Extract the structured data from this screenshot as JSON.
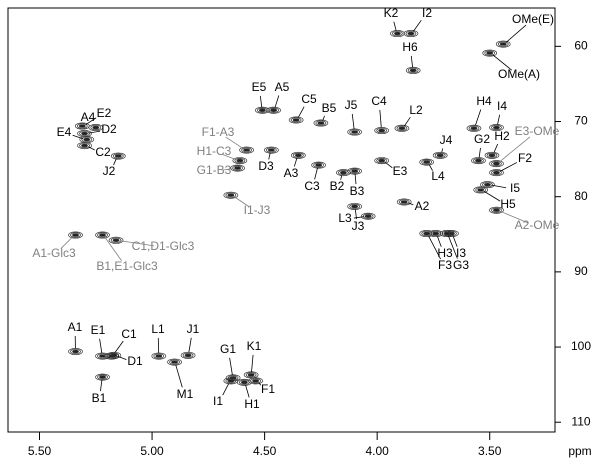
{
  "chart_data": {
    "type": "contour",
    "xlabel": "ppm",
    "xlim": [
      5.64,
      3.21
    ],
    "ylim": [
      111.3,
      54.9
    ],
    "xticks": [
      {
        "value": 5.5,
        "label": "5.50"
      },
      {
        "value": 5.0,
        "label": "5.00"
      },
      {
        "value": 4.5,
        "label": "4.50"
      },
      {
        "value": 4.0,
        "label": "4.00"
      },
      {
        "value": 3.5,
        "label": "3.50"
      }
    ],
    "yticks": [
      60,
      70,
      80,
      90,
      100,
      110
    ],
    "annotations": [
      {
        "text": "K2",
        "x": 3.91,
        "y": 58.3,
        "color": "#000000"
      },
      {
        "text": "I2",
        "x": 3.85,
        "y": 58.3,
        "color": "#000000"
      },
      {
        "text": "OMe(E)",
        "x": 3.44,
        "y": 59.7,
        "color": "#000000"
      },
      {
        "text": "H6",
        "x": 3.84,
        "y": 63.2,
        "color": "#000000"
      },
      {
        "text": "OMe(A)",
        "x": 3.5,
        "y": 60.9,
        "color": "#000000"
      },
      {
        "text": "E5",
        "x": 4.51,
        "y": 68.5,
        "color": "#000000"
      },
      {
        "text": "A5",
        "x": 4.46,
        "y": 68.5,
        "color": "#000000"
      },
      {
        "text": "C5",
        "x": 4.36,
        "y": 69.8,
        "color": "#000000"
      },
      {
        "text": "B5",
        "x": 4.25,
        "y": 70.2,
        "color": "#000000"
      },
      {
        "text": "J5",
        "x": 4.1,
        "y": 71.4,
        "color": "#000000"
      },
      {
        "text": "C4",
        "x": 3.98,
        "y": 71.2,
        "color": "#000000"
      },
      {
        "text": "L2",
        "x": 3.89,
        "y": 70.9,
        "color": "#000000"
      },
      {
        "text": "H4",
        "x": 3.57,
        "y": 70.9,
        "color": "#000000"
      },
      {
        "text": "I4",
        "x": 3.47,
        "y": 70.8,
        "color": "#000000"
      },
      {
        "text": "E4",
        "x": 5.29,
        "y": 72.4,
        "color": "#000000"
      },
      {
        "text": "A4",
        "x": 5.25,
        "y": 70.8,
        "color": "#000000"
      },
      {
        "text": "E2",
        "x": 5.31,
        "y": 70.6,
        "color": "#000000"
      },
      {
        "text": "D2",
        "x": 5.3,
        "y": 71.6,
        "color": "#000000"
      },
      {
        "text": "C2",
        "x": 5.3,
        "y": 73.2,
        "color": "#000000"
      },
      {
        "text": "J2",
        "x": 5.15,
        "y": 74.6,
        "color": "#000000"
      },
      {
        "text": "F1-A3",
        "x": 4.58,
        "y": 73.8,
        "color": "#808080"
      },
      {
        "text": "H1-C3",
        "x": 4.61,
        "y": 75.2,
        "color": "#808080"
      },
      {
        "text": "G1-B3",
        "x": 4.62,
        "y": 76.2,
        "color": "#808080"
      },
      {
        "text": "D3",
        "x": 4.47,
        "y": 73.8,
        "color": "#000000"
      },
      {
        "text": "A3",
        "x": 4.35,
        "y": 74.5,
        "color": "#000000"
      },
      {
        "text": "C3",
        "x": 4.26,
        "y": 75.8,
        "color": "#000000"
      },
      {
        "text": "B2",
        "x": 4.15,
        "y": 76.8,
        "color": "#000000"
      },
      {
        "text": "B3",
        "x": 4.1,
        "y": 76.6,
        "color": "#000000"
      },
      {
        "text": "E3",
        "x": 3.98,
        "y": 75.2,
        "color": "#000000"
      },
      {
        "text": "J4",
        "x": 3.72,
        "y": 74.5,
        "color": "#000000"
      },
      {
        "text": "G2",
        "x": 3.55,
        "y": 75.2,
        "color": "#000000"
      },
      {
        "text": "H2",
        "x": 3.49,
        "y": 74.5,
        "color": "#000000"
      },
      {
        "text": "E3-OMe",
        "x": 3.47,
        "y": 75.6,
        "color": "#808080"
      },
      {
        "text": "F2",
        "x": 3.47,
        "y": 76.8,
        "color": "#000000"
      },
      {
        "text": "L4",
        "x": 3.78,
        "y": 75.4,
        "color": "#000000"
      },
      {
        "text": "I5",
        "x": 3.51,
        "y": 78.4,
        "color": "#000000"
      },
      {
        "text": "H5",
        "x": 3.54,
        "y": 79.1,
        "color": "#000000"
      },
      {
        "text": "A2",
        "x": 3.88,
        "y": 80.7,
        "color": "#000000"
      },
      {
        "text": "A2-OMe",
        "x": 3.47,
        "y": 81.8,
        "color": "#808080"
      },
      {
        "text": "I1-J3",
        "x": 4.65,
        "y": 79.8,
        "color": "#808080"
      },
      {
        "text": "L3",
        "x": 4.04,
        "y": 82.6,
        "color": "#000000"
      },
      {
        "text": "J3",
        "x": 4.1,
        "y": 81.3,
        "color": "#000000"
      },
      {
        "text": "H3",
        "x": 3.74,
        "y": 84.9,
        "color": "#000000"
      },
      {
        "text": "F3",
        "x": 3.78,
        "y": 84.9,
        "color": "#000000"
      },
      {
        "text": "I3",
        "x": 3.67,
        "y": 84.9,
        "color": "#000000"
      },
      {
        "text": "G3",
        "x": 3.69,
        "y": 84.9,
        "color": "#000000"
      },
      {
        "text": "A1-Glc3",
        "x": 5.34,
        "y": 85.1,
        "color": "#808080"
      },
      {
        "text": "B1,E1-Glc3",
        "x": 5.22,
        "y": 85.1,
        "color": "#808080"
      },
      {
        "text": "C1,D1-Glc3",
        "x": 5.16,
        "y": 85.8,
        "color": "#808080"
      },
      {
        "text": "A1",
        "x": 5.34,
        "y": 100.6,
        "color": "#000000"
      },
      {
        "text": "E1",
        "x": 5.22,
        "y": 101.2,
        "color": "#000000"
      },
      {
        "text": "C1",
        "x": 5.18,
        "y": 101.2,
        "color": "#000000"
      },
      {
        "text": "D1",
        "x": 5.17,
        "y": 101.1,
        "color": "#000000"
      },
      {
        "text": "B1",
        "x": 5.22,
        "y": 104.0,
        "color": "#000000"
      },
      {
        "text": "L1",
        "x": 4.97,
        "y": 101.2,
        "color": "#000000"
      },
      {
        "text": "J1",
        "x": 4.84,
        "y": 101.1,
        "color": "#000000"
      },
      {
        "text": "M1",
        "x": 4.9,
        "y": 102.0,
        "color": "#000000"
      },
      {
        "text": "G1",
        "x": 4.64,
        "y": 104.1,
        "color": "#000000"
      },
      {
        "text": "K1",
        "x": 4.56,
        "y": 103.7,
        "color": "#000000"
      },
      {
        "text": "I1",
        "x": 4.65,
        "y": 104.5,
        "color": "#000000"
      },
      {
        "text": "H1",
        "x": 4.59,
        "y": 104.7,
        "color": "#000000"
      },
      {
        "text": "F1",
        "x": 4.54,
        "y": 104.5,
        "color": "#000000"
      }
    ]
  }
}
